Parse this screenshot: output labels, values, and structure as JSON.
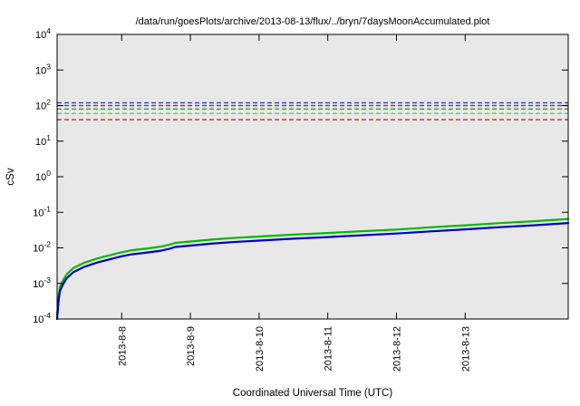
{
  "chart_data": {
    "type": "line",
    "title": "/data/run/goesPlots/archive/2013-08-13/flux/../bryn/7daysMoonAccumulated.plot",
    "xlabel": "Coordinated Universal Time (UTC)",
    "ylabel": "cSv",
    "y_scale": "log",
    "ylim": [
      0.0001,
      10000
    ],
    "y_tick_exponents": [
      4,
      3,
      2,
      1,
      0,
      -1,
      -2,
      -3,
      -4
    ],
    "x_domain_days": [
      7.06,
      14.5
    ],
    "x_ticks": [
      {
        "day": 8,
        "label": "2013-8-8"
      },
      {
        "day": 9,
        "label": "2013-8-9"
      },
      {
        "day": 10,
        "label": "2013-8-10"
      },
      {
        "day": 11,
        "label": "2013-8-11"
      },
      {
        "day": 12,
        "label": "2013-8-12"
      },
      {
        "day": 13,
        "label": "2013-8-13"
      }
    ],
    "grid": false,
    "legend": "none",
    "plot_bg": "#e8e8e8",
    "threshold_lines": [
      {
        "name": "upper-blue",
        "value": 120,
        "color": "#2244cc",
        "style": "dashed"
      },
      {
        "name": "magenta",
        "value": 100,
        "color": "#aa22aa",
        "style": "dashed"
      },
      {
        "name": "green-upper",
        "value": 80,
        "color": "#22aa22",
        "style": "dashed"
      },
      {
        "name": "green-lower",
        "value": 60,
        "color": "#66cc44",
        "style": "dashed"
      },
      {
        "name": "lower-red",
        "value": 40,
        "color": "#cc2222",
        "style": "dashed"
      }
    ],
    "series": [
      {
        "name": "accumulated-dose-green",
        "color": "#00bb00",
        "width": 2.2,
        "points": [
          [
            7.06,
            0.00013
          ],
          [
            7.08,
            0.00039
          ],
          [
            7.1,
            0.00078
          ],
          [
            7.14,
            0.00117
          ],
          [
            7.2,
            0.00182
          ],
          [
            7.3,
            0.00273
          ],
          [
            7.45,
            0.00377
          ],
          [
            7.65,
            0.00507
          ],
          [
            7.85,
            0.00637
          ],
          [
            8.0,
            0.00754
          ],
          [
            8.15,
            0.00858
          ],
          [
            8.35,
            0.00949
          ],
          [
            8.55,
            0.01066
          ],
          [
            8.7,
            0.01235
          ],
          [
            8.78,
            0.01378
          ],
          [
            9.0,
            0.01508
          ],
          [
            9.3,
            0.01703
          ],
          [
            9.6,
            0.01885
          ],
          [
            10.0,
            0.0208
          ],
          [
            10.5,
            0.02353
          ],
          [
            11.0,
            0.02613
          ],
          [
            11.5,
            0.02938
          ],
          [
            12.0,
            0.03276
          ],
          [
            12.5,
            0.03783
          ],
          [
            13.0,
            0.04303
          ],
          [
            13.5,
            0.04953
          ],
          [
            14.0,
            0.05616
          ],
          [
            14.5,
            0.065
          ]
        ]
      },
      {
        "name": "accumulated-dose-blue",
        "color": "#0000cc",
        "width": 2.2,
        "points": [
          [
            7.06,
            0.0001
          ],
          [
            7.08,
            0.0003
          ],
          [
            7.1,
            0.0006
          ],
          [
            7.14,
            0.0009
          ],
          [
            7.2,
            0.0014
          ],
          [
            7.3,
            0.0021
          ],
          [
            7.45,
            0.0029
          ],
          [
            7.65,
            0.0039
          ],
          [
            7.85,
            0.0049
          ],
          [
            8.0,
            0.0058
          ],
          [
            8.15,
            0.0066
          ],
          [
            8.35,
            0.0073
          ],
          [
            8.55,
            0.0082
          ],
          [
            8.7,
            0.0095
          ],
          [
            8.78,
            0.0106
          ],
          [
            9.0,
            0.0116
          ],
          [
            9.3,
            0.0131
          ],
          [
            9.6,
            0.0145
          ],
          [
            10.0,
            0.016
          ],
          [
            10.5,
            0.0181
          ],
          [
            11.0,
            0.0201
          ],
          [
            11.5,
            0.0226
          ],
          [
            12.0,
            0.0252
          ],
          [
            12.5,
            0.0291
          ],
          [
            13.0,
            0.0331
          ],
          [
            13.5,
            0.0381
          ],
          [
            14.0,
            0.0432
          ],
          [
            14.5,
            0.05
          ]
        ]
      }
    ]
  }
}
